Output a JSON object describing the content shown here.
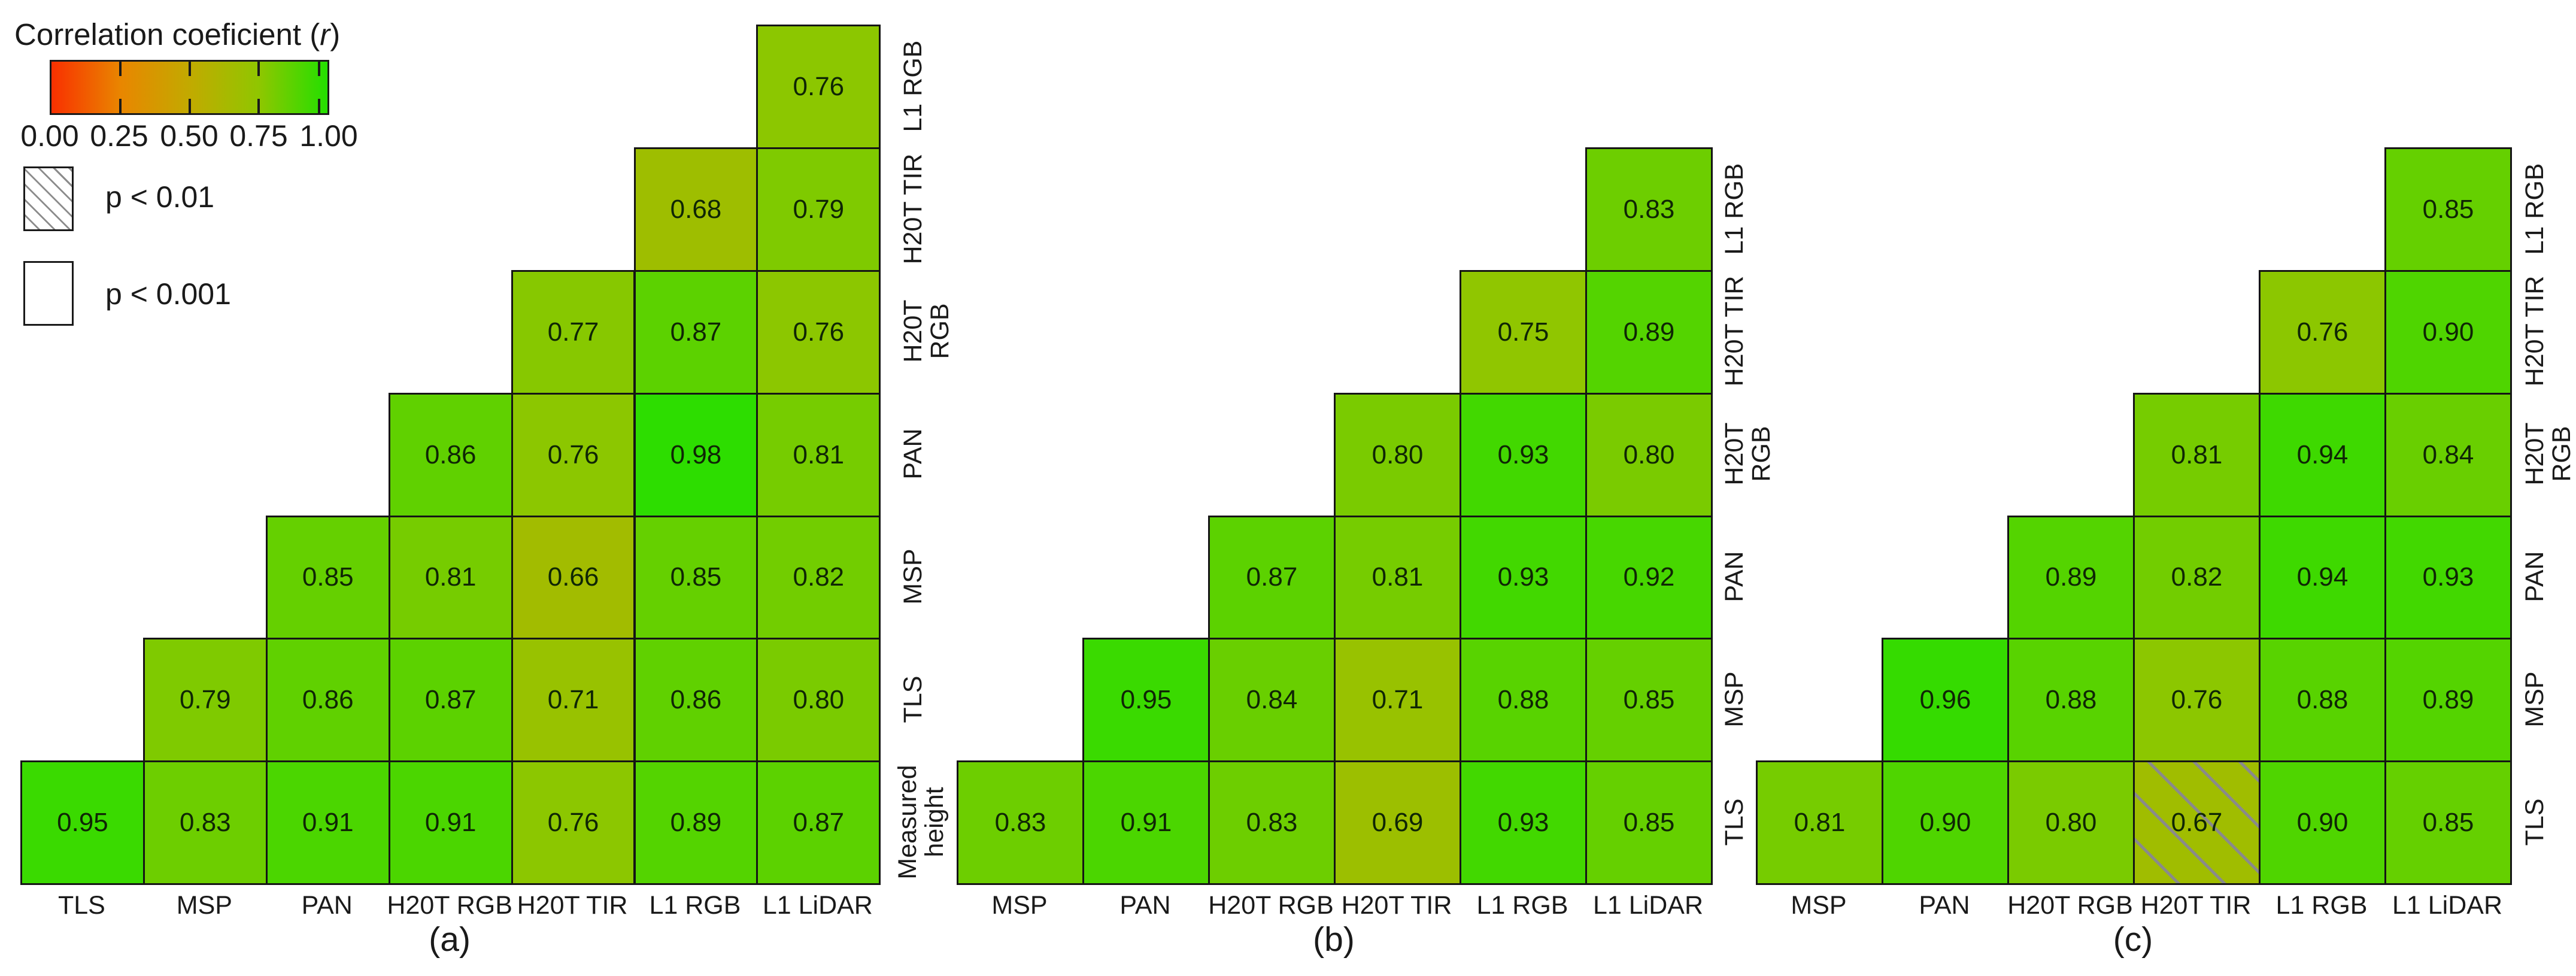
{
  "figure": {
    "legend": {
      "title_prefix": "Correlation coeficient (",
      "title_var": "r",
      "title_suffix": ")",
      "ticks": [
        "0.00",
        "0.25",
        "0.50",
        "0.75",
        "1.00"
      ],
      "p_hatched_label": "p < 0.01",
      "p_plain_label": "p < 0.001"
    }
  },
  "chart_data": {
    "type": "heatmap",
    "subtype": "triangular-correlation-matrices",
    "legend_title": "Correlation coeficient (r)",
    "value_range": [
      0,
      1
    ],
    "colorbar_ticks": [
      0.0,
      0.25,
      0.5,
      0.75,
      1.0
    ],
    "colormap": [
      {
        "t": 0.0,
        "color": "#f93000"
      },
      {
        "t": 0.25,
        "color": "#e98600"
      },
      {
        "t": 0.5,
        "color": "#c2aa00"
      },
      {
        "t": 0.75,
        "color": "#90c600"
      },
      {
        "t": 1.0,
        "color": "#24df00"
      }
    ],
    "significance": {
      "hatched": "p < 0.01",
      "plain": "p < 0.001"
    },
    "panels": [
      {
        "letter": "(a)",
        "columns": [
          "TLS",
          "MSP",
          "PAN",
          "H20T RGB",
          "H20T TIR",
          "L1 RGB",
          "L1 LiDAR"
        ],
        "rows": [
          {
            "label": "L1 RGB",
            "cells": [
              {
                "col": "L1 LiDAR",
                "r": 0.76
              }
            ]
          },
          {
            "label": "H20T TIR",
            "cells": [
              {
                "col": "L1 RGB",
                "r": 0.68
              },
              {
                "col": "L1 LiDAR",
                "r": 0.79
              }
            ]
          },
          {
            "label": "H20T RGB",
            "cells": [
              {
                "col": "H20T TIR",
                "r": 0.77
              },
              {
                "col": "L1 RGB",
                "r": 0.87
              },
              {
                "col": "L1 LiDAR",
                "r": 0.76
              }
            ]
          },
          {
            "label": "PAN",
            "cells": [
              {
                "col": "H20T RGB",
                "r": 0.86
              },
              {
                "col": "H20T TIR",
                "r": 0.76
              },
              {
                "col": "L1 RGB",
                "r": 0.98
              },
              {
                "col": "L1 LiDAR",
                "r": 0.81
              }
            ]
          },
          {
            "label": "MSP",
            "cells": [
              {
                "col": "PAN",
                "r": 0.85
              },
              {
                "col": "H20T RGB",
                "r": 0.81
              },
              {
                "col": "H20T TIR",
                "r": 0.66
              },
              {
                "col": "L1 RGB",
                "r": 0.85
              },
              {
                "col": "L1 LiDAR",
                "r": 0.82
              }
            ]
          },
          {
            "label": "TLS",
            "cells": [
              {
                "col": "MSP",
                "r": 0.79
              },
              {
                "col": "PAN",
                "r": 0.86
              },
              {
                "col": "H20T RGB",
                "r": 0.87
              },
              {
                "col": "H20T TIR",
                "r": 0.71
              },
              {
                "col": "L1 RGB",
                "r": 0.86
              },
              {
                "col": "L1 LiDAR",
                "r": 0.8
              }
            ]
          },
          {
            "label": "Measured\nheight",
            "cells": [
              {
                "col": "TLS",
                "r": 0.95
              },
              {
                "col": "MSP",
                "r": 0.83
              },
              {
                "col": "PAN",
                "r": 0.91
              },
              {
                "col": "H20T RGB",
                "r": 0.91
              },
              {
                "col": "H20T TIR",
                "r": 0.76
              },
              {
                "col": "L1 RGB",
                "r": 0.89
              },
              {
                "col": "L1 LiDAR",
                "r": 0.87
              }
            ]
          }
        ]
      },
      {
        "letter": "(b)",
        "columns": [
          "MSP",
          "PAN",
          "H20T RGB",
          "H20T TIR",
          "L1 RGB",
          "L1 LiDAR"
        ],
        "rows": [
          {
            "label": "L1 RGB",
            "cells": [
              {
                "col": "L1 LiDAR",
                "r": 0.83
              }
            ]
          },
          {
            "label": "H20T TIR",
            "cells": [
              {
                "col": "L1 RGB",
                "r": 0.75
              },
              {
                "col": "L1 LiDAR",
                "r": 0.89
              }
            ]
          },
          {
            "label": "H20T RGB",
            "cells": [
              {
                "col": "H20T TIR",
                "r": 0.8
              },
              {
                "col": "L1 RGB",
                "r": 0.93
              },
              {
                "col": "L1 LiDAR",
                "r": 0.8
              }
            ]
          },
          {
            "label": "PAN",
            "cells": [
              {
                "col": "H20T RGB",
                "r": 0.87
              },
              {
                "col": "H20T TIR",
                "r": 0.81
              },
              {
                "col": "L1 RGB",
                "r": 0.93
              },
              {
                "col": "L1 LiDAR",
                "r": 0.92
              }
            ]
          },
          {
            "label": "MSP",
            "cells": [
              {
                "col": "PAN",
                "r": 0.95
              },
              {
                "col": "H20T RGB",
                "r": 0.84
              },
              {
                "col": "H20T TIR",
                "r": 0.71
              },
              {
                "col": "L1 RGB",
                "r": 0.88
              },
              {
                "col": "L1 LiDAR",
                "r": 0.85
              }
            ]
          },
          {
            "label": "TLS",
            "cells": [
              {
                "col": "MSP",
                "r": 0.83
              },
              {
                "col": "PAN",
                "r": 0.91
              },
              {
                "col": "H20T RGB",
                "r": 0.83
              },
              {
                "col": "H20T TIR",
                "r": 0.69
              },
              {
                "col": "L1 RGB",
                "r": 0.93
              },
              {
                "col": "L1 LiDAR",
                "r": 0.85
              }
            ]
          }
        ]
      },
      {
        "letter": "(c)",
        "columns": [
          "MSP",
          "PAN",
          "H20T RGB",
          "H20T TIR",
          "L1 RGB",
          "L1 LiDAR"
        ],
        "rows": [
          {
            "label": "L1 RGB",
            "cells": [
              {
                "col": "L1 LiDAR",
                "r": 0.85
              }
            ]
          },
          {
            "label": "H20T TIR",
            "cells": [
              {
                "col": "L1 RGB",
                "r": 0.76
              },
              {
                "col": "L1 LiDAR",
                "r": 0.9
              }
            ]
          },
          {
            "label": "H20T RGB",
            "cells": [
              {
                "col": "H20T TIR",
                "r": 0.81
              },
              {
                "col": "L1 RGB",
                "r": 0.94
              },
              {
                "col": "L1 LiDAR",
                "r": 0.84
              }
            ]
          },
          {
            "label": "PAN",
            "cells": [
              {
                "col": "H20T RGB",
                "r": 0.89
              },
              {
                "col": "H20T TIR",
                "r": 0.82
              },
              {
                "col": "L1 RGB",
                "r": 0.94
              },
              {
                "col": "L1 LiDAR",
                "r": 0.93
              }
            ]
          },
          {
            "label": "MSP",
            "cells": [
              {
                "col": "PAN",
                "r": 0.96
              },
              {
                "col": "H20T RGB",
                "r": 0.88
              },
              {
                "col": "H20T TIR",
                "r": 0.76
              },
              {
                "col": "L1 RGB",
                "r": 0.88
              },
              {
                "col": "L1 LiDAR",
                "r": 0.89
              }
            ]
          },
          {
            "label": "TLS",
            "cells": [
              {
                "col": "MSP",
                "r": 0.81
              },
              {
                "col": "PAN",
                "r": 0.9
              },
              {
                "col": "H20T RGB",
                "r": 0.8
              },
              {
                "col": "H20T TIR",
                "r": 0.67,
                "hatched": true
              },
              {
                "col": "L1 RGB",
                "r": 0.9
              },
              {
                "col": "L1 LiDAR",
                "r": 0.85
              }
            ]
          }
        ]
      }
    ]
  }
}
